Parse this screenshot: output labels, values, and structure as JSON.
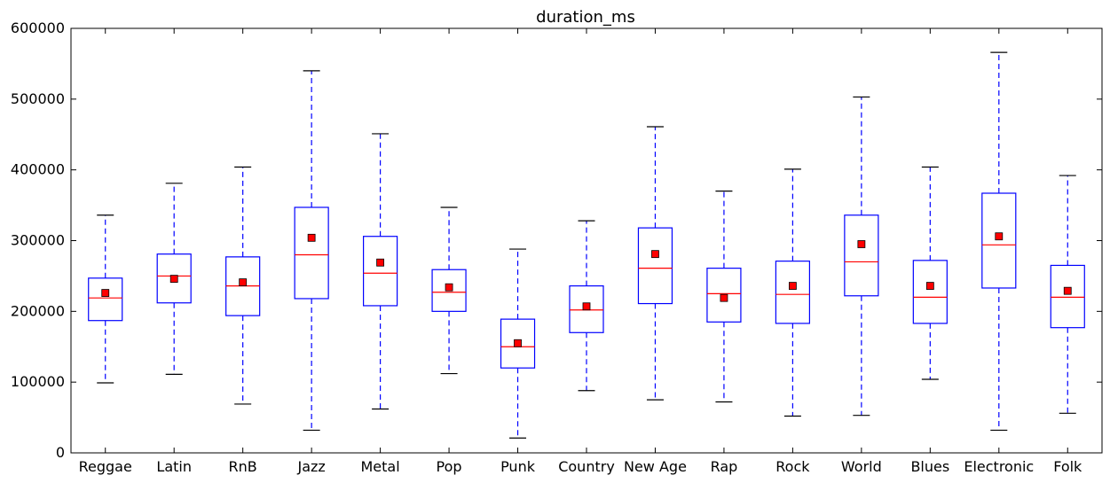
{
  "chart_data": {
    "type": "box",
    "title": "duration_ms",
    "xlabel": "",
    "ylabel": "",
    "ylim": [
      0,
      600000
    ],
    "yticks": [
      0,
      100000,
      200000,
      300000,
      400000,
      500000,
      600000
    ],
    "ytick_labels": [
      "0",
      "100000",
      "200000",
      "300000",
      "400000",
      "500000",
      "600000"
    ],
    "grid": false,
    "legend": "none",
    "categories": [
      "Reggae",
      "Latin",
      "RnB",
      "Jazz",
      "Metal",
      "Pop",
      "Punk",
      "Country",
      "New Age",
      "Rap",
      "Rock",
      "World",
      "Blues",
      "Electronic",
      "Folk"
    ],
    "boxes": [
      {
        "whisker_low": 99000,
        "q1": 187000,
        "median": 219000,
        "q3": 247000,
        "whisker_high": 336000,
        "mean": 226000
      },
      {
        "whisker_low": 111000,
        "q1": 212000,
        "median": 250000,
        "q3": 281000,
        "whisker_high": 381000,
        "mean": 246000
      },
      {
        "whisker_low": 69000,
        "q1": 194000,
        "median": 236000,
        "q3": 277000,
        "whisker_high": 404000,
        "mean": 241000
      },
      {
        "whisker_low": 32000,
        "q1": 218000,
        "median": 280000,
        "q3": 347000,
        "whisker_high": 540000,
        "mean": 304000
      },
      {
        "whisker_low": 62000,
        "q1": 208000,
        "median": 254000,
        "q3": 306000,
        "whisker_high": 451000,
        "mean": 269000
      },
      {
        "whisker_low": 112000,
        "q1": 200000,
        "median": 227000,
        "q3": 259000,
        "whisker_high": 347000,
        "mean": 234000
      },
      {
        "whisker_low": 21000,
        "q1": 120000,
        "median": 150000,
        "q3": 189000,
        "whisker_high": 288000,
        "mean": 155000
      },
      {
        "whisker_low": 88000,
        "q1": 170000,
        "median": 202000,
        "q3": 236000,
        "whisker_high": 328000,
        "mean": 207000
      },
      {
        "whisker_low": 75000,
        "q1": 211000,
        "median": 261000,
        "q3": 318000,
        "whisker_high": 461000,
        "mean": 281000
      },
      {
        "whisker_low": 72000,
        "q1": 185000,
        "median": 225000,
        "q3": 261000,
        "whisker_high": 370000,
        "mean": 219000
      },
      {
        "whisker_low": 52000,
        "q1": 183000,
        "median": 224000,
        "q3": 271000,
        "whisker_high": 401000,
        "mean": 236000
      },
      {
        "whisker_low": 53000,
        "q1": 222000,
        "median": 270000,
        "q3": 336000,
        "whisker_high": 503000,
        "mean": 295000
      },
      {
        "whisker_low": 104000,
        "q1": 183000,
        "median": 220000,
        "q3": 272000,
        "whisker_high": 404000,
        "mean": 236000
      },
      {
        "whisker_low": 32000,
        "q1": 233000,
        "median": 294000,
        "q3": 367000,
        "whisker_high": 566000,
        "mean": 306000
      },
      {
        "whisker_low": 56000,
        "q1": 177000,
        "median": 220000,
        "q3": 265000,
        "whisker_high": 392000,
        "mean": 229000
      }
    ],
    "colors": {
      "box": "#0000ff",
      "whisker": "#0000ff",
      "median": "#ff0000",
      "mean_marker": "#ff0000",
      "mean_marker_edge": "#000000",
      "caps": "#000000",
      "axes": "#000000"
    }
  }
}
